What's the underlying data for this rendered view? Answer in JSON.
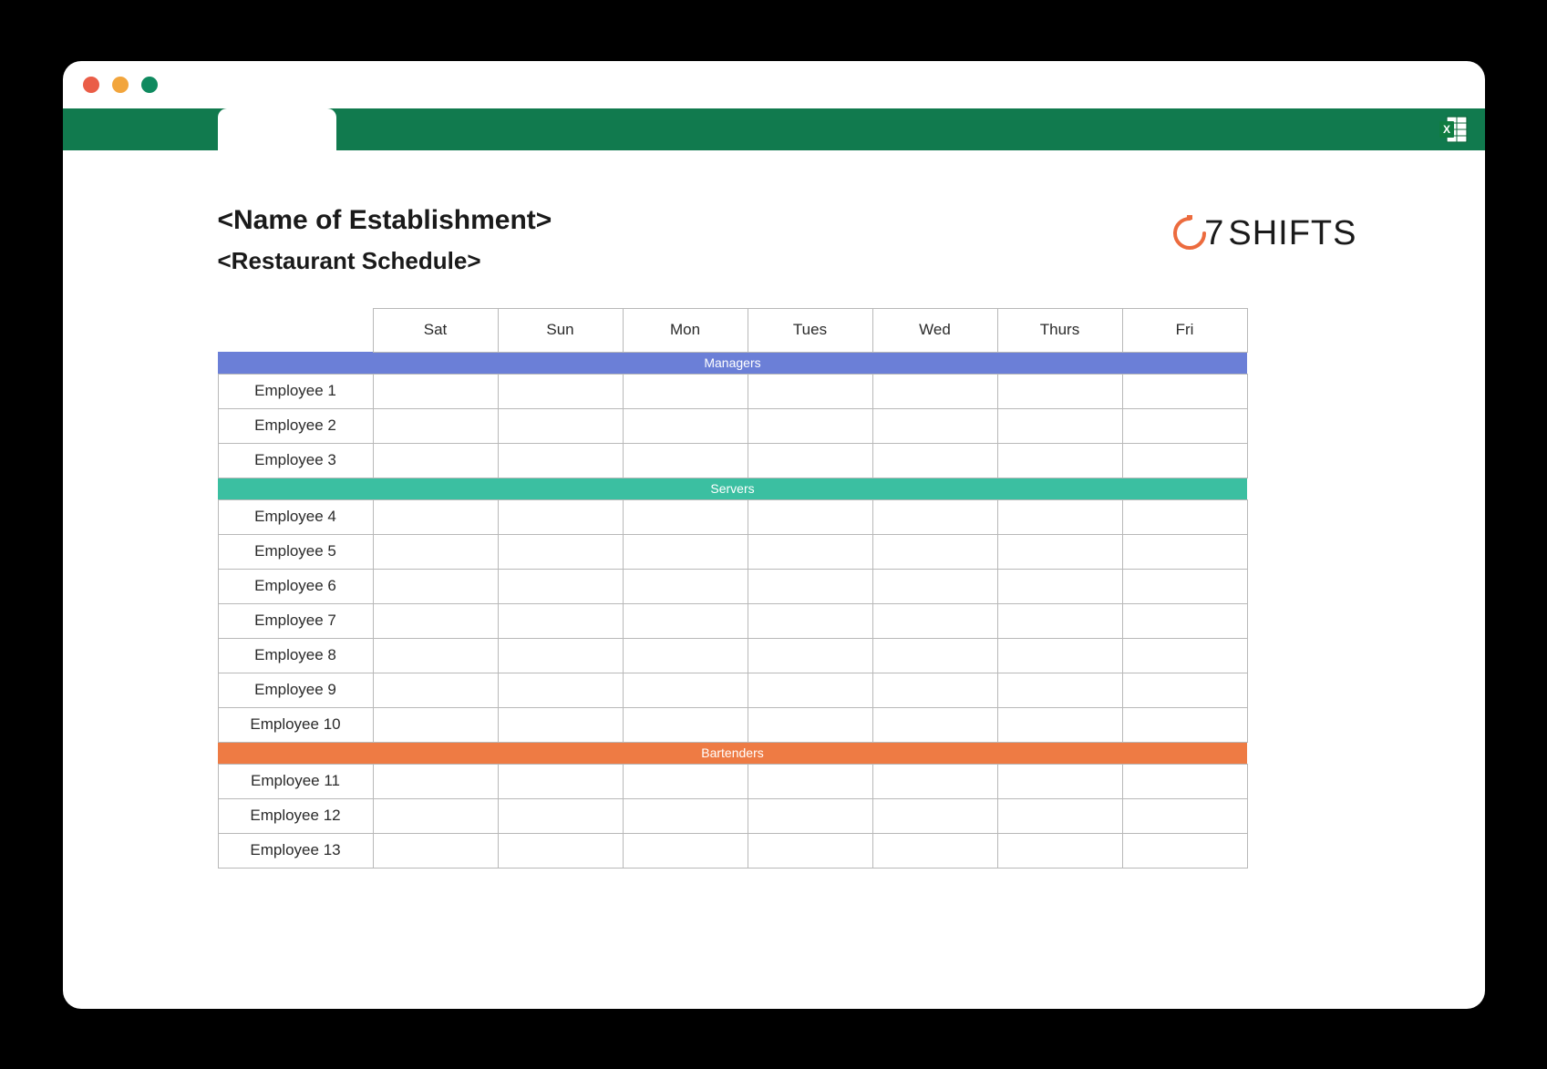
{
  "window": {
    "traffic_colors": [
      "#ea5d47",
      "#f2a53c",
      "#0f8a5f"
    ]
  },
  "ribbon": {
    "bg_color": "#117a4e",
    "excel_badge_color": "#107c41"
  },
  "logo": {
    "prefix": "7",
    "text": "SHIFTS",
    "arc_color": "#ec6b3e"
  },
  "titles": {
    "establishment": "<Name of Establishment>",
    "schedule": "<Restaurant Schedule>"
  },
  "days": [
    "Sat",
    "Sun",
    "Mon",
    "Tues",
    "Wed",
    "Thurs",
    "Fri"
  ],
  "sections": [
    {
      "label": "Managers",
      "color": "#6b7fd7",
      "employees": [
        "Employee 1",
        "Employee 2",
        "Employee 3"
      ]
    },
    {
      "label": "Servers",
      "color": "#3bbfa1",
      "employees": [
        "Employee 4",
        "Employee 5",
        "Employee 6",
        "Employee 7",
        "Employee 8",
        "Employee 9",
        "Employee 10"
      ]
    },
    {
      "label": "Bartenders",
      "color": "#ee7b44",
      "employees": [
        "Employee 11",
        "Employee 12",
        "Employee 13"
      ]
    }
  ]
}
